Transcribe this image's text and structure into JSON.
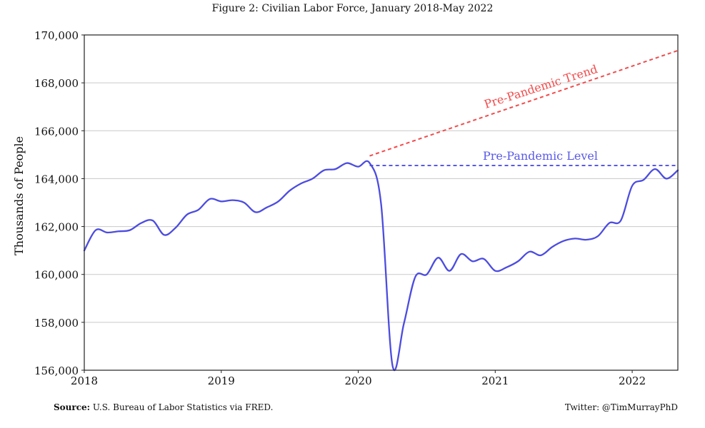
{
  "figure": {
    "title": "Figure 2: Civilian Labor Force, January 2018-May 2022",
    "source_label": "Source:",
    "source_text": " U.S. Bureau of Labor Statistics via FRED.",
    "twitter": "Twitter: @TimMurrayPhD"
  },
  "colors": {
    "series": "#4c4ce0",
    "trend": "#f24a4a",
    "level": "#5959e8",
    "grid": "#c9c9c9",
    "axis": "#222222",
    "text": "#111111"
  },
  "chart_data": {
    "type": "line",
    "title": "Figure 2: Civilian Labor Force, January 2018-May 2022",
    "xlabel": "",
    "ylabel": "Thousands of People",
    "xlim": [
      "2018-01",
      "2022-05"
    ],
    "ylim": [
      156000,
      170000
    ],
    "grid": true,
    "x_ticks": [
      "2018",
      "2019",
      "2020",
      "2021",
      "2022"
    ],
    "y_ticks": [
      "156,000",
      "158,000",
      "160,000",
      "162,000",
      "164,000",
      "166,000",
      "168,000",
      "170,000"
    ],
    "series": [
      {
        "x": [
          "2018-01",
          "2018-02",
          "2018-03",
          "2018-04",
          "2018-05",
          "2018-06",
          "2018-07",
          "2018-08",
          "2018-09",
          "2018-10",
          "2018-11",
          "2018-12",
          "2019-01",
          "2019-02",
          "2019-03",
          "2019-04",
          "2019-05",
          "2019-06",
          "2019-07",
          "2019-08",
          "2019-09",
          "2019-10",
          "2019-11",
          "2019-12",
          "2020-01",
          "2020-02",
          "2020-03",
          "2020-04",
          "2020-05",
          "2020-06",
          "2020-07",
          "2020-08",
          "2020-09",
          "2020-10",
          "2020-11",
          "2020-12",
          "2021-01",
          "2021-02",
          "2021-03",
          "2021-04",
          "2021-05",
          "2021-06",
          "2021-07",
          "2021-08",
          "2021-09",
          "2021-10",
          "2021-11",
          "2021-12",
          "2022-01",
          "2022-02",
          "2022-03",
          "2022-04",
          "2022-05"
        ],
        "values": [
          161000,
          161850,
          161750,
          161800,
          161850,
          162150,
          162250,
          161650,
          161950,
          162500,
          162700,
          163150,
          163050,
          163100,
          163000,
          162600,
          162800,
          163050,
          163500,
          163800,
          164000,
          164350,
          164400,
          164650,
          164500,
          164650,
          162950,
          156200,
          157950,
          159900,
          160000,
          160700,
          160150,
          160850,
          160550,
          160650,
          160150,
          160300,
          160550,
          160950,
          160800,
          161150,
          161400,
          161500,
          161450,
          161600,
          162150,
          162250,
          163700,
          163950,
          164400,
          164000,
          164350
        ]
      }
    ],
    "reference_lines": [
      {
        "name": "Pre-Pandemic Trend",
        "style": "dashed",
        "color": "#f24a4a",
        "points": [
          [
            "2020-02",
            164950
          ],
          [
            "2022-05",
            169350
          ]
        ]
      },
      {
        "name": "Pre-Pandemic Level",
        "style": "dashed",
        "color": "#5959e8",
        "points": [
          [
            "2020-02",
            164550
          ],
          [
            "2022-05",
            164550
          ]
        ]
      }
    ]
  }
}
